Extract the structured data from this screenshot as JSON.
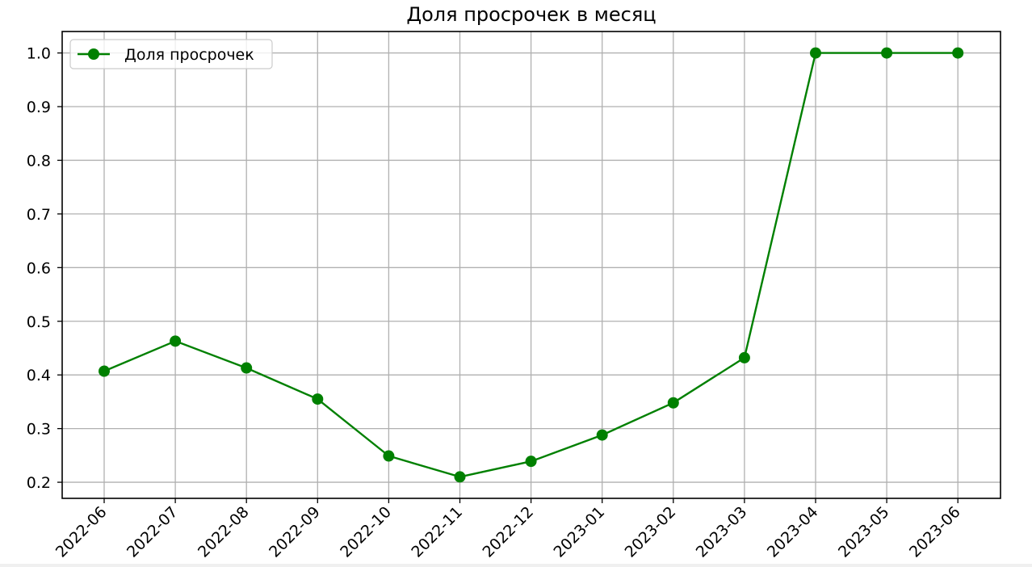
{
  "chart_data": {
    "type": "line",
    "title": "Доля просрочек в месяц",
    "xlabel": "",
    "ylabel": "",
    "x": [
      "2022-06",
      "2022-07",
      "2022-08",
      "2022-09",
      "2022-10",
      "2022-11",
      "2022-12",
      "2023-01",
      "2023-02",
      "2023-03",
      "2023-04",
      "2023-05",
      "2023-06"
    ],
    "series": [
      {
        "name": "Доля просрочек",
        "values": [
          0.407,
          0.463,
          0.413,
          0.355,
          0.249,
          0.21,
          0.239,
          0.288,
          0.348,
          0.432,
          1.0,
          1.0,
          1.0
        ],
        "color": "#008000",
        "marker": "circle"
      }
    ],
    "ylim": [
      0.17,
      1.04
    ],
    "y_ticks": [
      "0.2",
      "0.3",
      "0.4",
      "0.5",
      "0.6",
      "0.7",
      "0.8",
      "0.9",
      "1.0"
    ],
    "x_tick_rotation": "45",
    "grid": true,
    "legend": "top-left"
  },
  "colors": {
    "line": "#008000",
    "grid": "#b0b0b0",
    "axes": "#000000",
    "legend_border": "#cccccc"
  }
}
